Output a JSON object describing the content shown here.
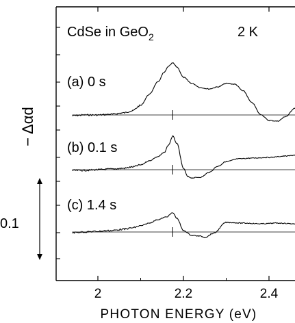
{
  "chart_data": {
    "type": "line",
    "title": "CdSe in GeO",
    "title_subscript": "2",
    "temperature": "2 K",
    "xlabel": "PHOTON ENERGY (eV)",
    "ylabel": "− Δαd",
    "xlim": [
      1.93,
      2.5
    ],
    "xticks": [
      "2",
      "2.2",
      "2.4"
    ],
    "xtick_values": [
      2.0,
      2.2,
      2.4
    ],
    "scale_bar_label": "0.1",
    "scale_bar_value": 0.1,
    "grid": false,
    "marker_energy": 2.175,
    "series": [
      {
        "name": "(a) 0 s",
        "baseline": 0,
        "x": [
          1.94,
          1.97,
          2.0,
          2.03,
          2.06,
          2.08,
          2.1,
          2.12,
          2.14,
          2.155,
          2.165,
          2.175,
          2.185,
          2.2,
          2.22,
          2.24,
          2.26,
          2.28,
          2.3,
          2.32,
          2.34,
          2.36,
          2.38,
          2.4,
          2.42,
          2.44,
          2.46,
          2.48,
          2.5
        ],
        "values": [
          -0.001,
          0.0,
          0.0,
          0.001,
          0.003,
          0.006,
          0.014,
          0.03,
          0.048,
          0.062,
          0.071,
          0.076,
          0.07,
          0.055,
          0.046,
          0.04,
          0.038,
          0.041,
          0.046,
          0.045,
          0.035,
          0.018,
          0.001,
          -0.008,
          -0.009,
          -0.002,
          0.01,
          0.016,
          0.014
        ]
      },
      {
        "name": "(b) 0.1 s",
        "baseline": 0,
        "x": [
          1.94,
          1.97,
          2.0,
          2.03,
          2.06,
          2.08,
          2.1,
          2.12,
          2.14,
          2.155,
          2.165,
          2.175,
          2.185,
          2.2,
          2.21,
          2.22,
          2.24,
          2.26,
          2.28,
          2.3,
          2.33,
          2.36,
          2.4,
          2.44,
          2.47,
          2.5
        ],
        "values": [
          -0.001,
          -0.001,
          0.0,
          0.001,
          0.002,
          0.004,
          0.007,
          0.013,
          0.019,
          0.025,
          0.036,
          0.049,
          0.038,
          0.002,
          -0.01,
          -0.012,
          -0.011,
          -0.004,
          0.005,
          0.012,
          0.016,
          0.017,
          0.018,
          0.02,
          0.022,
          0.024
        ]
      },
      {
        "name": "(c) 1.4 s",
        "baseline": 0,
        "x": [
          1.94,
          1.97,
          2.0,
          2.03,
          2.06,
          2.08,
          2.1,
          2.12,
          2.14,
          2.16,
          2.175,
          2.185,
          2.2,
          2.22,
          2.24,
          2.25,
          2.27,
          2.3,
          2.34,
          2.38,
          2.42,
          2.46,
          2.5
        ],
        "values": [
          -0.001,
          0.0,
          0.001,
          0.002,
          0.004,
          0.006,
          0.009,
          0.013,
          0.018,
          0.022,
          0.028,
          0.02,
          0.002,
          -0.005,
          -0.006,
          -0.008,
          -0.002,
          0.014,
          0.013,
          0.012,
          0.013,
          0.012,
          0.013
        ]
      }
    ]
  }
}
